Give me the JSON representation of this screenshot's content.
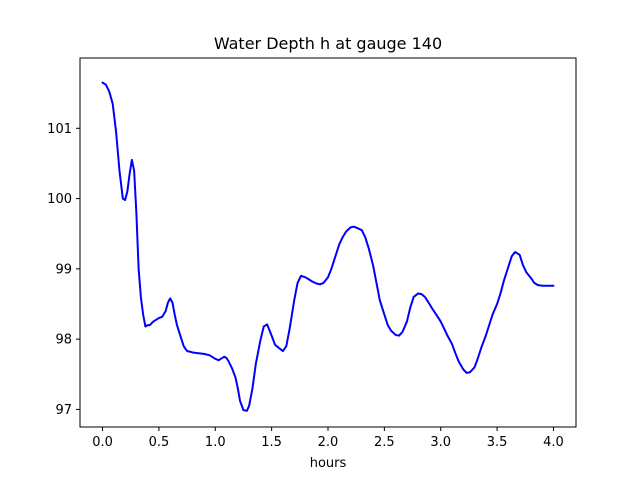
{
  "chart_data": {
    "type": "line",
    "title": "Water Depth h at gauge 140",
    "xlabel": "hours",
    "ylabel": "",
    "xlim": [
      -0.2,
      4.2
    ],
    "ylim": [
      96.75,
      102.0
    ],
    "xticks": [
      0.0,
      0.5,
      1.0,
      1.5,
      2.0,
      2.5,
      3.0,
      3.5,
      4.0
    ],
    "xtick_labels": [
      "0.0",
      "0.5",
      "1.0",
      "1.5",
      "2.0",
      "2.5",
      "3.0",
      "3.5",
      "4.0"
    ],
    "yticks": [
      97,
      98,
      99,
      100,
      101
    ],
    "ytick_labels": [
      "97",
      "98",
      "99",
      "100",
      "101"
    ],
    "grid": false,
    "series": [
      {
        "color": "#0000ff",
        "x": [
          0.0,
          0.03,
          0.06,
          0.09,
          0.12,
          0.15,
          0.18,
          0.2,
          0.22,
          0.24,
          0.26,
          0.28,
          0.3,
          0.32,
          0.34,
          0.36,
          0.38,
          0.4,
          0.42,
          0.45,
          0.48,
          0.5,
          0.53,
          0.56,
          0.58,
          0.6,
          0.62,
          0.64,
          0.66,
          0.68,
          0.7,
          0.72,
          0.75,
          0.78,
          0.8,
          0.85,
          0.9,
          0.95,
          1.0,
          1.03,
          1.05,
          1.08,
          1.1,
          1.12,
          1.15,
          1.18,
          1.2,
          1.22,
          1.25,
          1.28,
          1.3,
          1.33,
          1.36,
          1.4,
          1.43,
          1.46,
          1.5,
          1.53,
          1.56,
          1.6,
          1.63,
          1.66,
          1.7,
          1.73,
          1.76,
          1.8,
          1.83,
          1.86,
          1.9,
          1.93,
          1.96,
          2.0,
          2.03,
          2.06,
          2.1,
          2.13,
          2.16,
          2.2,
          2.23,
          2.26,
          2.3,
          2.33,
          2.36,
          2.4,
          2.43,
          2.46,
          2.5,
          2.53,
          2.56,
          2.6,
          2.63,
          2.66,
          2.7,
          2.73,
          2.76,
          2.8,
          2.83,
          2.86,
          2.9,
          2.93,
          2.96,
          3.0,
          3.03,
          3.06,
          3.1,
          3.13,
          3.16,
          3.2,
          3.23,
          3.26,
          3.3,
          3.33,
          3.36,
          3.4,
          3.43,
          3.46,
          3.5,
          3.53,
          3.56,
          3.6,
          3.63,
          3.66,
          3.7,
          3.73,
          3.76,
          3.8,
          3.83,
          3.86,
          3.9,
          3.93,
          3.96,
          4.0
        ],
        "y": [
          101.65,
          101.62,
          101.52,
          101.35,
          100.95,
          100.4,
          100.0,
          99.98,
          100.1,
          100.35,
          100.55,
          100.4,
          99.8,
          99.0,
          98.6,
          98.35,
          98.18,
          98.2,
          98.2,
          98.25,
          98.28,
          98.3,
          98.32,
          98.4,
          98.52,
          98.58,
          98.52,
          98.35,
          98.2,
          98.1,
          98.0,
          97.9,
          97.83,
          97.82,
          97.81,
          97.8,
          97.79,
          97.77,
          97.72,
          97.7,
          97.72,
          97.75,
          97.73,
          97.68,
          97.58,
          97.45,
          97.3,
          97.12,
          96.99,
          96.98,
          97.05,
          97.3,
          97.65,
          97.98,
          98.18,
          98.21,
          98.05,
          97.92,
          97.88,
          97.83,
          97.9,
          98.15,
          98.55,
          98.8,
          98.9,
          98.88,
          98.85,
          98.82,
          98.79,
          98.78,
          98.8,
          98.88,
          99.0,
          99.15,
          99.35,
          99.45,
          99.53,
          99.59,
          99.6,
          99.58,
          99.55,
          99.45,
          99.3,
          99.05,
          98.8,
          98.55,
          98.35,
          98.2,
          98.12,
          98.06,
          98.05,
          98.1,
          98.25,
          98.45,
          98.6,
          98.65,
          98.64,
          98.6,
          98.5,
          98.42,
          98.35,
          98.25,
          98.15,
          98.05,
          97.93,
          97.8,
          97.68,
          97.57,
          97.52,
          97.53,
          97.6,
          97.73,
          97.88,
          98.05,
          98.2,
          98.35,
          98.5,
          98.65,
          98.83,
          99.03,
          99.18,
          99.24,
          99.2,
          99.05,
          98.95,
          98.87,
          98.8,
          98.77,
          98.76,
          98.76,
          98.76,
          98.76
        ]
      }
    ]
  }
}
